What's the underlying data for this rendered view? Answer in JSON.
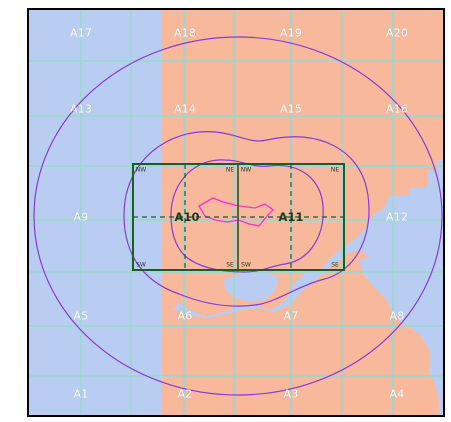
{
  "map": {
    "colors": {
      "water": "#b9cdf2",
      "land": "#f7b89c",
      "grid": "#9ed7d2",
      "outline": "#1e5a2a",
      "contour": "#8a3ad6",
      "inner": "#ff2fd2"
    },
    "cells": {
      "A17": "A17",
      "A18": "A18",
      "A19": "A19",
      "A20": "A20",
      "A13": "A13",
      "A14": "A14",
      "A15": "A15",
      "A16": "A16",
      "A9": "A9",
      "A12": "A12",
      "A5": "A5",
      "A6": "A6",
      "A7": "A7",
      "A8": "A8",
      "A1": "A1",
      "A2": "A2",
      "A3": "A3",
      "A4": "A4"
    },
    "center": {
      "left": "A10",
      "right": "A11"
    },
    "corners": {
      "nw": "NW",
      "ne_left": "NE",
      "nw_right": "NW",
      "ne": "NE",
      "sw": "SW",
      "se_left": "SE",
      "sw_right": "SW",
      "se": "SE"
    }
  }
}
